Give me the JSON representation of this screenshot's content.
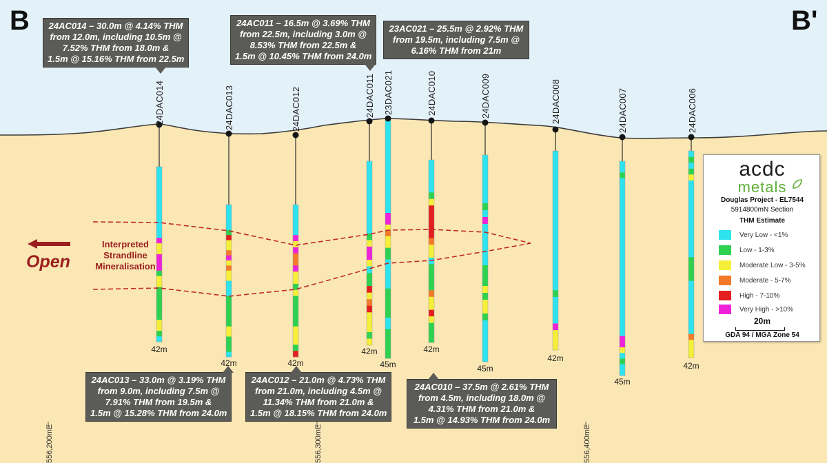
{
  "section": {
    "start_label": "B",
    "end_label": "B'"
  },
  "colors": {
    "very_low": "#2ee3ee",
    "low": "#2ed150",
    "moderate_low": "#f6ef3a",
    "moderate": "#f47a2a",
    "high": "#e41e1e",
    "very_high": "#ee22d8",
    "interpretation_line": "#c0282b",
    "sky": "#e3f1f9",
    "ground": "#fbe7b4"
  },
  "holes": [
    {
      "name": "24DAC014",
      "depth_label": "42m",
      "grades": [
        "very_low",
        "very_low",
        "very_low",
        "very_low",
        "very_low",
        "very_low",
        "very_low",
        "very_low",
        "very_low",
        "very_low",
        "very_low",
        "very_low",
        "very_low",
        "very_high",
        "moderate_low",
        "moderate_low",
        "very_high",
        "very_high",
        "very_high",
        "low",
        "moderate_low",
        "moderate_low",
        "low",
        "low",
        "low",
        "low",
        "low",
        "low",
        "moderate_low",
        "moderate_low",
        "low",
        "very_low"
      ]
    },
    {
      "name": "24DAC013",
      "depth_label": "42m",
      "grades": [
        "very_low",
        "very_low",
        "very_low",
        "very_low",
        "very_low",
        "low",
        "high",
        "moderate_low",
        "moderate_low",
        "moderate",
        "very_high",
        "moderate_low",
        "moderate",
        "moderate_low",
        "moderate_low",
        "very_low",
        "very_low",
        "very_low",
        "low",
        "low",
        "low",
        "low",
        "low",
        "low",
        "moderate_low",
        "moderate_low",
        "low",
        "low",
        "low",
        "very_low"
      ]
    },
    {
      "name": "24DAC012",
      "depth_label": "42m",
      "grades": [
        "very_low",
        "very_low",
        "very_low",
        "very_low",
        "very_low",
        "very_high",
        "moderate_low",
        "very_high",
        "moderate",
        "moderate",
        "very_high",
        "moderate_low",
        "moderate_low",
        "low",
        "moderate_low",
        "low",
        "low",
        "low",
        "low",
        "low",
        "moderate_low",
        "moderate_low",
        "moderate_low",
        "low",
        "high"
      ]
    },
    {
      "name": "24DAC011",
      "depth_label": "42m",
      "grades": [
        "very_low",
        "very_low",
        "very_low",
        "very_low",
        "very_low",
        "very_low",
        "very_low",
        "very_low",
        "very_low",
        "very_low",
        "very_low",
        "low",
        "moderate_low",
        "very_high",
        "very_high",
        "moderate_low",
        "very_low",
        "low",
        "low",
        "high",
        "moderate_low",
        "moderate",
        "high",
        "moderate_low",
        "moderate_low",
        "moderate_low",
        "low",
        "moderate_low"
      ]
    },
    {
      "name": "23DAC021",
      "depth_label": "45m",
      "grades": [
        "very_low",
        "very_low",
        "very_low",
        "very_low",
        "very_low",
        "very_low",
        "very_low",
        "very_low",
        "very_low",
        "very_low",
        "very_low",
        "very_low",
        "very_low",
        "very_low",
        "very_low",
        "very_low",
        "very_high",
        "very_high",
        "moderate_low",
        "moderate",
        "moderate_low",
        "moderate_low",
        "low",
        "low",
        "very_low",
        "very_low",
        "very_low",
        "very_low",
        "very_low",
        "low",
        "low",
        "low",
        "low",
        "low",
        "very_low",
        "very_low",
        "low",
        "low",
        "low",
        "low",
        "low"
      ]
    },
    {
      "name": "24DAC010",
      "depth_label": "42m",
      "grades": [
        "very_low",
        "very_low",
        "very_low",
        "very_low",
        "very_low",
        "low",
        "moderate_low",
        "high",
        "high",
        "high",
        "high",
        "high",
        "moderate",
        "moderate_low",
        "moderate_low",
        "very_low",
        "low",
        "low",
        "low",
        "low",
        "moderate",
        "moderate_low",
        "moderate_low",
        "high",
        "moderate_low",
        "low",
        "low",
        "low"
      ]
    },
    {
      "name": "24DAC009",
      "depth_label": "45m",
      "grades": [
        "very_low",
        "very_low",
        "very_low",
        "very_low",
        "very_low",
        "very_low",
        "very_low",
        "low",
        "very_low",
        "very_high",
        "very_low",
        "very_low",
        "very_low",
        "very_low",
        "very_low",
        "very_low",
        "low",
        "low",
        "low",
        "moderate_low",
        "low",
        "moderate_low",
        "moderate_low",
        "low",
        "very_low",
        "very_low",
        "very_low",
        "very_low",
        "very_low",
        "very_low"
      ]
    },
    {
      "name": "24DAC008",
      "depth_label": "42m",
      "grades": [
        "very_low",
        "very_low",
        "very_low",
        "very_low",
        "very_low",
        "very_low",
        "very_low",
        "very_low",
        "very_low",
        "very_low",
        "very_low",
        "very_low",
        "very_low",
        "very_low",
        "very_low",
        "very_low",
        "very_low",
        "very_low",
        "very_low",
        "very_low",
        "very_low",
        "low",
        "very_low",
        "very_low",
        "very_low",
        "very_low",
        "very_high",
        "moderate_low",
        "moderate_low",
        "moderate_low"
      ]
    },
    {
      "name": "24DAC007",
      "depth_label": "45m",
      "grades": [
        "very_low",
        "very_low",
        "low",
        "very_low",
        "very_low",
        "very_low",
        "very_low",
        "very_low",
        "very_low",
        "very_low",
        "very_low",
        "very_low",
        "very_low",
        "very_low",
        "very_low",
        "very_low",
        "very_low",
        "very_low",
        "very_low",
        "very_low",
        "very_low",
        "very_low",
        "very_low",
        "very_low",
        "very_low",
        "very_low",
        "very_low",
        "very_low",
        "very_low",
        "very_low",
        "very_low",
        "very_high",
        "very_high",
        "moderate_low",
        "very_low",
        "low",
        "very_low",
        "very_low"
      ]
    },
    {
      "name": "24DAC006",
      "depth_label": "42m",
      "grades": [
        "very_low",
        "low",
        "very_low",
        "low",
        "moderate_low",
        "very_low",
        "very_low",
        "very_low",
        "very_low",
        "very_low",
        "very_low",
        "very_low",
        "very_low",
        "very_low",
        "very_low",
        "very_low",
        "very_low",
        "very_low",
        "low",
        "low",
        "low",
        "low",
        "very_low",
        "very_low",
        "very_low",
        "very_low",
        "very_low",
        "very_low",
        "very_low",
        "very_low",
        "very_low",
        "moderate",
        "moderate_low",
        "moderate_low",
        "moderate_low"
      ]
    }
  ],
  "callouts": [
    {
      "lines": [
        "24AC014 – 30.0m @ 4.14% THM",
        "from 12.0m, including 10.5m @",
        "7.52% THM from 18.0m &",
        "1.5m @ 15.16% THM from 22.5m"
      ]
    },
    {
      "lines": [
        "24AC011 – 16.5m @ 3.69% THM",
        "from 22.5m, including 3.0m @",
        "8.53% THM from 22.5m &",
        "1.5m @ 10.45% THM from 24.0m"
      ]
    },
    {
      "lines": [
        "23AC021 – 25.5m @ 2.92% THM",
        "from 19.5m, including 7.5m @",
        "6.16% THM from 21m"
      ]
    },
    {
      "lines": [
        "24AC013 – 33.0m @ 3.19% THM",
        "from 9.0m, including 7.5m @",
        "7.91% THM from 19.5m &",
        "1.5m @ 15.28% THM from 24.0m"
      ]
    },
    {
      "lines": [
        "24AC012 – 21.0m @ 4.73% THM",
        "from 21.0m, including 4.5m @",
        "11.34% THM from 21.0m &",
        "1.5m @ 18.15% THM from 24.0m"
      ]
    },
    {
      "lines": [
        "24AC010 – 37.5m @ 2.61% THM",
        "from 4.5m, including 18.0m @",
        "4.31% THM from 21.0m &",
        "1.5m @ 14.93% THM from 24.0m"
      ]
    }
  ],
  "interpretation": {
    "label_lines": [
      "Interpreted",
      "Strandline",
      "Mineralisation"
    ],
    "open_label": "Open"
  },
  "eastings": [
    "556,200mE",
    "556,300mE",
    "556,400mE"
  ],
  "legend": {
    "logo_main": "acdc",
    "logo_sub": "metals",
    "project": "Douglas Project - EL7544",
    "section_name": "5914800mN  Section",
    "heading": "THM Estimate",
    "items": [
      {
        "key": "very_low",
        "label": "Very Low - <1%"
      },
      {
        "key": "low",
        "label": "Low - 1-3%"
      },
      {
        "key": "moderate_low",
        "label": "Moderate Low - 3-5%"
      },
      {
        "key": "moderate",
        "label": "Moderate - 5-7%"
      },
      {
        "key": "high",
        "label": "High - 7-10%"
      },
      {
        "key": "very_high",
        "label": "Very High - >10%"
      }
    ],
    "scale_label": "20m",
    "projection": "GDA 94 / MGA Zone 54"
  }
}
